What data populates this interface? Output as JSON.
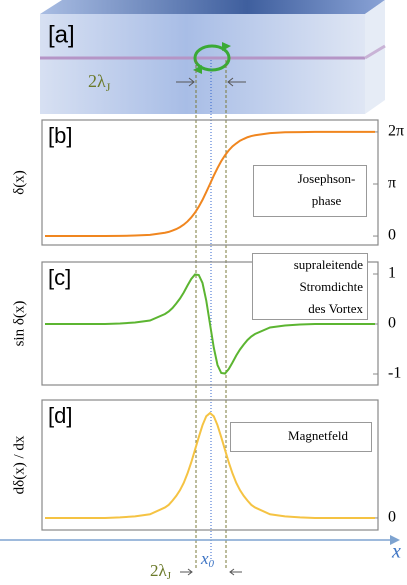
{
  "panel_a": {
    "label": "[a]",
    "width_label": {
      "main": "2λ",
      "sub": "J"
    }
  },
  "x_axis": {
    "label": "x",
    "center_label": {
      "main": "x",
      "sub": "0"
    },
    "width_label": {
      "main": "2λ",
      "sub": "J"
    }
  },
  "chart_data": [
    {
      "type": "line",
      "title": "[b]",
      "ylabel": "δ(x)",
      "x": [
        -11,
        -10,
        -9,
        -8,
        -7,
        -6,
        -5,
        -4,
        -3,
        -2.75,
        -2.5,
        -2.25,
        -2,
        -1.75,
        -1.5,
        -1.25,
        -1,
        -0.75,
        -0.5,
        -0.25,
        0,
        0.25,
        0.5,
        0.75,
        1,
        1.25,
        1.5,
        1.75,
        2,
        2.25,
        2.5,
        2.75,
        3,
        4,
        5,
        6,
        7,
        8,
        9,
        10,
        11
      ],
      "series": [
        {
          "name": "Josephson-\nphase",
          "color": "#f0861f",
          "values": [
            0,
            0,
            0,
            0,
            0,
            0.01,
            0.03,
            0.07,
            0.2,
            0.25,
            0.33,
            0.42,
            0.54,
            0.69,
            0.88,
            1.12,
            1.41,
            1.77,
            2.18,
            2.65,
            3.14,
            3.64,
            4.1,
            4.52,
            4.87,
            5.17,
            5.41,
            5.59,
            5.75,
            5.86,
            5.96,
            6.03,
            6.08,
            6.21,
            6.26,
            6.27,
            6.28,
            6.28,
            6.28,
            6.28,
            6.28
          ]
        }
      ],
      "xlim": [
        -11.2,
        11.2
      ],
      "ylim": [
        -0.54,
        7.0
      ],
      "yticks": [
        0,
        {
          "value": 3.14,
          "label": "π"
        },
        {
          "value": 6.28,
          "label": "2π"
        }
      ]
    },
    {
      "type": "line",
      "title": "[c]",
      "ylabel": "sin δ(x)",
      "x": [
        -11,
        -10,
        -9,
        -8,
        -7,
        -6,
        -5,
        -4,
        -3,
        -2.75,
        -2.5,
        -2.25,
        -2,
        -1.75,
        -1.5,
        -1.25,
        -1,
        -0.75,
        -0.5,
        -0.25,
        0,
        0.25,
        0.5,
        0.75,
        1,
        1.25,
        1.5,
        1.75,
        2,
        2.25,
        2.5,
        2.75,
        3,
        4,
        5,
        6,
        7,
        8,
        9,
        10,
        11
      ],
      "series": [
        {
          "name": "supraleitende\nStromdichte\ndes Vortex",
          "color": "#5cb531",
          "values": [
            0,
            0,
            0,
            0,
            0,
            0.01,
            0.03,
            0.07,
            0.2,
            0.25,
            0.32,
            0.41,
            0.51,
            0.63,
            0.77,
            0.9,
            0.99,
            0.98,
            0.82,
            0.47,
            0,
            -0.47,
            -0.82,
            -0.98,
            -0.99,
            -0.9,
            -0.77,
            -0.63,
            -0.51,
            -0.41,
            -0.32,
            -0.25,
            -0.2,
            -0.07,
            -0.03,
            -0.01,
            0,
            0,
            0,
            0,
            0
          ]
        }
      ],
      "xlim": [
        -11.2,
        11.2
      ],
      "ylim": [
        -1.22,
        1.24
      ],
      "yticks": [
        1,
        0,
        -1
      ]
    },
    {
      "type": "line",
      "title": "[d]",
      "ylabel": "dδ(x) / dx",
      "x": [
        -11,
        -10,
        -9,
        -8,
        -7,
        -6,
        -5,
        -4,
        -3,
        -2.75,
        -2.5,
        -2.25,
        -2,
        -1.75,
        -1.5,
        -1.25,
        -1,
        -0.75,
        -0.5,
        -0.25,
        0,
        0.25,
        0.5,
        0.75,
        1,
        1.25,
        1.5,
        1.75,
        2,
        2.25,
        2.5,
        2.75,
        3,
        4,
        5,
        6,
        7,
        8,
        9,
        10,
        11
      ],
      "series": [
        {
          "name": "Magnetfeld",
          "color": "#f5c343",
          "values": [
            0,
            0,
            0,
            0,
            0,
            0.01,
            0.03,
            0.07,
            0.2,
            0.25,
            0.33,
            0.42,
            0.53,
            0.67,
            0.85,
            1.06,
            1.3,
            1.54,
            1.77,
            1.94,
            2,
            1.94,
            1.77,
            1.54,
            1.3,
            1.06,
            0.85,
            0.67,
            0.53,
            0.42,
            0.33,
            0.25,
            0.2,
            0.07,
            0.03,
            0.01,
            0,
            0,
            0,
            0,
            0
          ]
        }
      ],
      "xlim": [
        -11.2,
        11.2
      ],
      "ylim": [
        -0.23,
        2.25
      ],
      "yticks": [
        0
      ]
    }
  ]
}
